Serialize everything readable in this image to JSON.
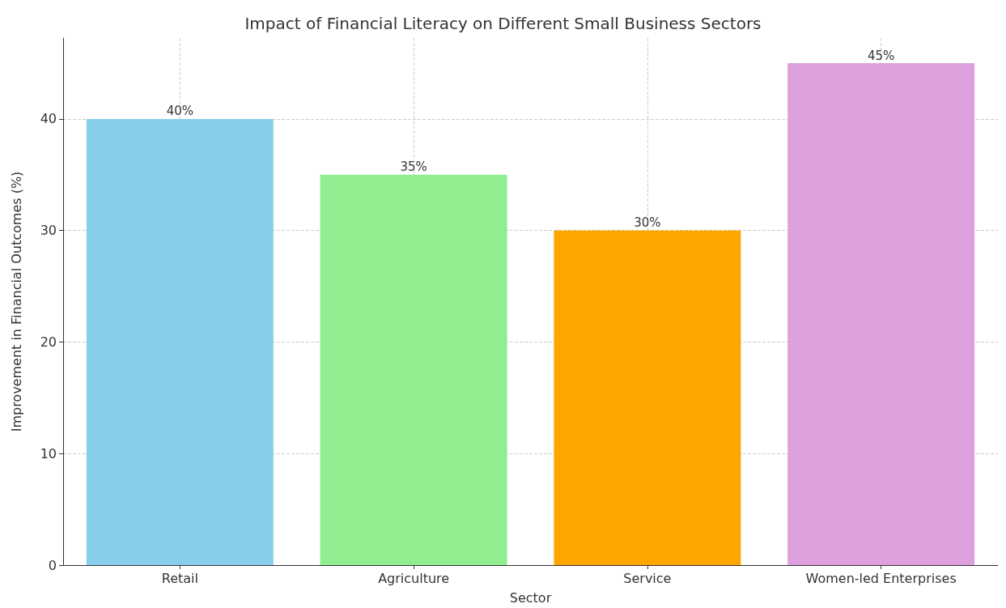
{
  "chart_data": {
    "type": "bar",
    "title": "Impact of Financial Literacy on Different Small Business Sectors",
    "xlabel": "Sector",
    "ylabel": "Improvement in Financial Outcomes (%)",
    "categories": [
      "Retail",
      "Agriculture",
      "Service",
      "Women-led Enterprises"
    ],
    "values": [
      40,
      35,
      30,
      45
    ],
    "colors": [
      "#87ceeb",
      "#90ee90",
      "#ffa500",
      "#dda0dd"
    ],
    "value_labels": [
      "40%",
      "35%",
      "30%",
      "45%"
    ],
    "ylim": [
      0,
      47.25
    ],
    "yticks": [
      0,
      10,
      20,
      30,
      40
    ],
    "grid": true,
    "line_style": "dashed"
  }
}
